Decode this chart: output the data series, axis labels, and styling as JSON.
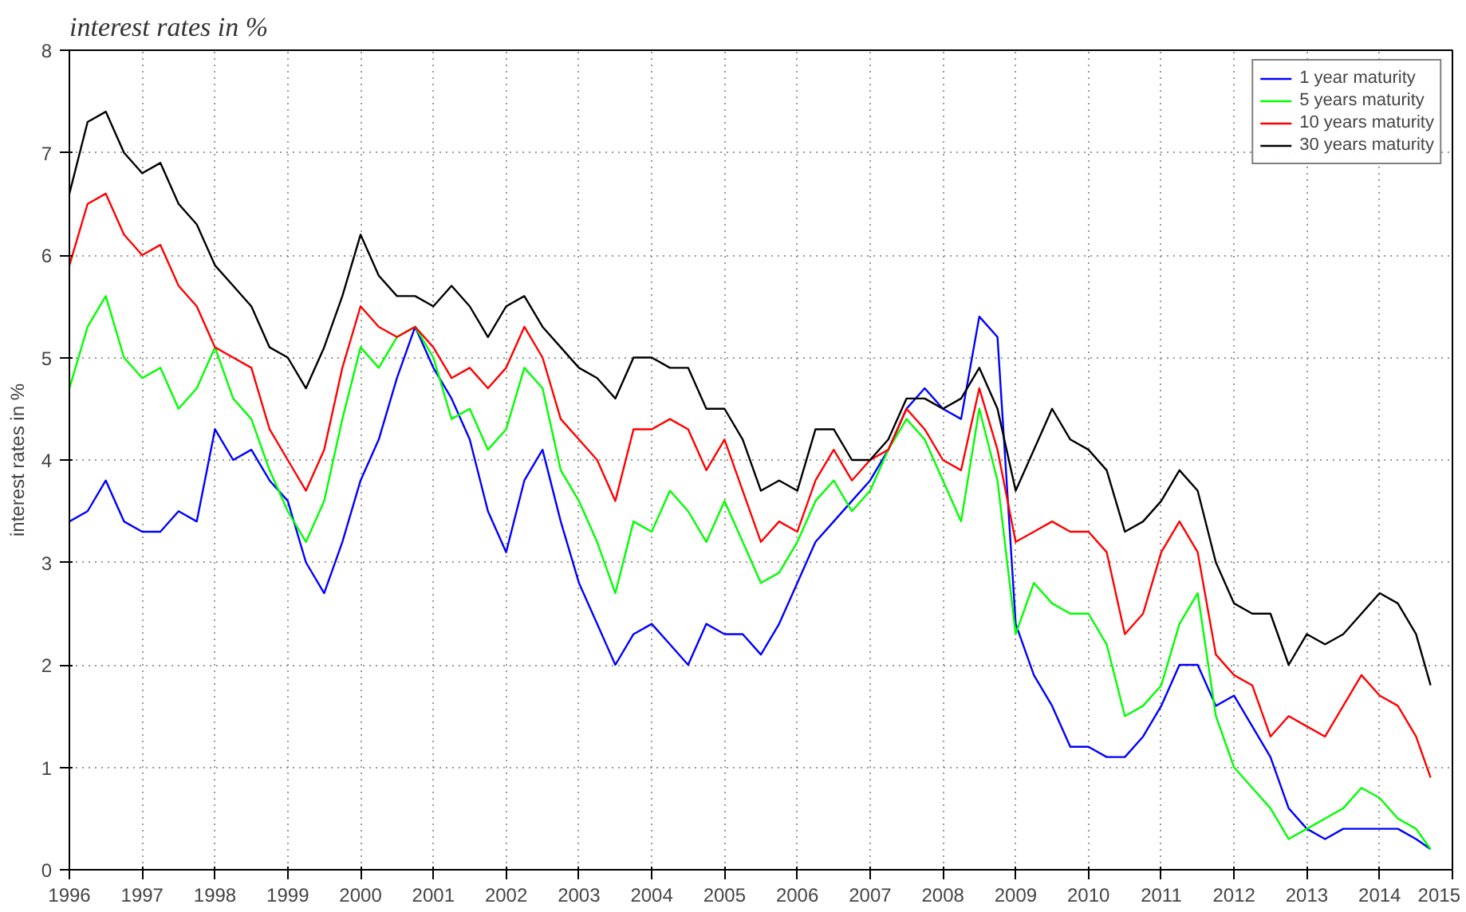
{
  "chart_data": {
    "type": "line",
    "title": "interest rates in %",
    "ylabel": "interest rates in %",
    "x": [
      1996.0,
      1996.25,
      1996.5,
      1996.75,
      1997.0,
      1997.25,
      1997.5,
      1997.75,
      1998.0,
      1998.25,
      1998.5,
      1998.75,
      1999.0,
      1999.25,
      1999.5,
      1999.75,
      2000.0,
      2000.25,
      2000.5,
      2000.75,
      2001.0,
      2001.25,
      2001.5,
      2001.75,
      2002.0,
      2002.25,
      2002.5,
      2002.75,
      2003.0,
      2003.25,
      2003.5,
      2003.75,
      2004.0,
      2004.25,
      2004.5,
      2004.75,
      2005.0,
      2005.25,
      2005.5,
      2005.75,
      2006.0,
      2006.25,
      2006.5,
      2006.75,
      2007.0,
      2007.25,
      2007.5,
      2007.75,
      2008.0,
      2008.25,
      2008.5,
      2008.75,
      2009.0,
      2009.25,
      2009.5,
      2009.75,
      2010.0,
      2010.25,
      2010.5,
      2010.75,
      2011.0,
      2011.25,
      2011.5,
      2011.75,
      2012.0,
      2012.25,
      2012.5,
      2012.75,
      2013.0,
      2013.25,
      2013.5,
      2013.75,
      2014.0,
      2014.25,
      2014.5,
      2014.7
    ],
    "series": [
      {
        "name": "1 year maturity",
        "color": "#0000ff",
        "values": [
          3.4,
          3.5,
          3.8,
          3.4,
          3.3,
          3.3,
          3.5,
          3.4,
          4.3,
          4.0,
          4.1,
          3.8,
          3.6,
          3.0,
          2.7,
          3.2,
          3.8,
          4.2,
          4.8,
          5.3,
          4.9,
          4.6,
          4.2,
          3.5,
          3.1,
          3.8,
          4.1,
          3.4,
          2.8,
          2.4,
          2.0,
          2.3,
          2.4,
          2.2,
          2.0,
          2.4,
          2.3,
          2.3,
          2.1,
          2.4,
          2.8,
          3.2,
          3.4,
          3.6,
          3.8,
          4.1,
          4.5,
          4.7,
          4.5,
          4.4,
          5.4,
          5.2,
          2.4,
          1.9,
          1.6,
          1.2,
          1.2,
          1.1,
          1.1,
          1.3,
          1.6,
          2.0,
          2.0,
          1.6,
          1.7,
          1.4,
          1.1,
          0.6,
          0.4,
          0.3,
          0.4,
          0.4,
          0.4,
          0.4,
          0.3,
          0.2
        ]
      },
      {
        "name": "5 years maturity",
        "color": "#00ff00",
        "values": [
          4.7,
          5.3,
          5.6,
          5.0,
          4.8,
          4.9,
          4.5,
          4.7,
          5.1,
          4.6,
          4.4,
          3.9,
          3.5,
          3.2,
          3.6,
          4.4,
          5.1,
          4.9,
          5.2,
          5.3,
          5.0,
          4.4,
          4.5,
          4.1,
          4.3,
          4.9,
          4.7,
          3.9,
          3.6,
          3.2,
          2.7,
          3.4,
          3.3,
          3.7,
          3.5,
          3.2,
          3.6,
          3.2,
          2.8,
          2.9,
          3.2,
          3.6,
          3.8,
          3.5,
          3.7,
          4.1,
          4.4,
          4.2,
          3.8,
          3.4,
          4.5,
          3.8,
          2.3,
          2.8,
          2.6,
          2.5,
          2.5,
          2.2,
          1.5,
          1.6,
          1.8,
          2.4,
          2.7,
          1.5,
          1.0,
          0.8,
          0.6,
          0.3,
          0.4,
          0.5,
          0.6,
          0.8,
          0.7,
          0.5,
          0.4,
          0.2
        ]
      },
      {
        "name": "10 years maturity",
        "color": "#ff0000",
        "values": [
          5.9,
          6.5,
          6.6,
          6.2,
          6.0,
          6.1,
          5.7,
          5.5,
          5.1,
          5.0,
          4.9,
          4.3,
          4.0,
          3.7,
          4.1,
          4.9,
          5.5,
          5.3,
          5.2,
          5.3,
          5.1,
          4.8,
          4.9,
          4.7,
          4.9,
          5.3,
          5.0,
          4.4,
          4.2,
          4.0,
          3.6,
          4.3,
          4.3,
          4.4,
          4.3,
          3.9,
          4.2,
          3.7,
          3.2,
          3.4,
          3.3,
          3.8,
          4.1,
          3.8,
          4.0,
          4.1,
          4.5,
          4.3,
          4.0,
          3.9,
          4.7,
          4.1,
          3.2,
          3.3,
          3.4,
          3.3,
          3.3,
          3.1,
          2.3,
          2.5,
          3.1,
          3.4,
          3.1,
          2.1,
          1.9,
          1.8,
          1.3,
          1.5,
          1.4,
          1.3,
          1.6,
          1.9,
          1.7,
          1.6,
          1.3,
          0.9
        ]
      },
      {
        "name": "30 years maturity",
        "color": "#000000",
        "values": [
          6.6,
          7.3,
          7.4,
          7.0,
          6.8,
          6.9,
          6.5,
          6.3,
          5.9,
          5.7,
          5.5,
          5.1,
          5.0,
          4.7,
          5.1,
          5.6,
          6.2,
          5.8,
          5.6,
          5.6,
          5.5,
          5.7,
          5.5,
          5.2,
          5.5,
          5.6,
          5.3,
          5.1,
          4.9,
          4.8,
          4.6,
          5.0,
          5.0,
          4.9,
          4.9,
          4.5,
          4.5,
          4.2,
          3.7,
          3.8,
          3.7,
          4.3,
          4.3,
          4.0,
          4.0,
          4.2,
          4.6,
          4.6,
          4.5,
          4.6,
          4.9,
          4.5,
          3.7,
          4.1,
          4.5,
          4.2,
          4.1,
          3.9,
          3.3,
          3.4,
          3.6,
          3.9,
          3.7,
          3.0,
          2.6,
          2.5,
          2.5,
          2.0,
          2.3,
          2.2,
          2.3,
          2.5,
          2.7,
          2.6,
          2.3,
          1.8
        ]
      }
    ],
    "xlim": [
      1996,
      2015
    ],
    "xticks": [
      1996,
      1997,
      1998,
      1999,
      2000,
      2001,
      2002,
      2003,
      2004,
      2005,
      2006,
      2007,
      2008,
      2009,
      2010,
      2011,
      2012,
      2013,
      2014,
      2015
    ],
    "ylim": [
      0,
      8
    ],
    "yticks": [
      0,
      1,
      2,
      3,
      4,
      5,
      6,
      7,
      8
    ],
    "grid": true,
    "legend": "top right",
    "marker": "none",
    "line_style": "solid"
  }
}
